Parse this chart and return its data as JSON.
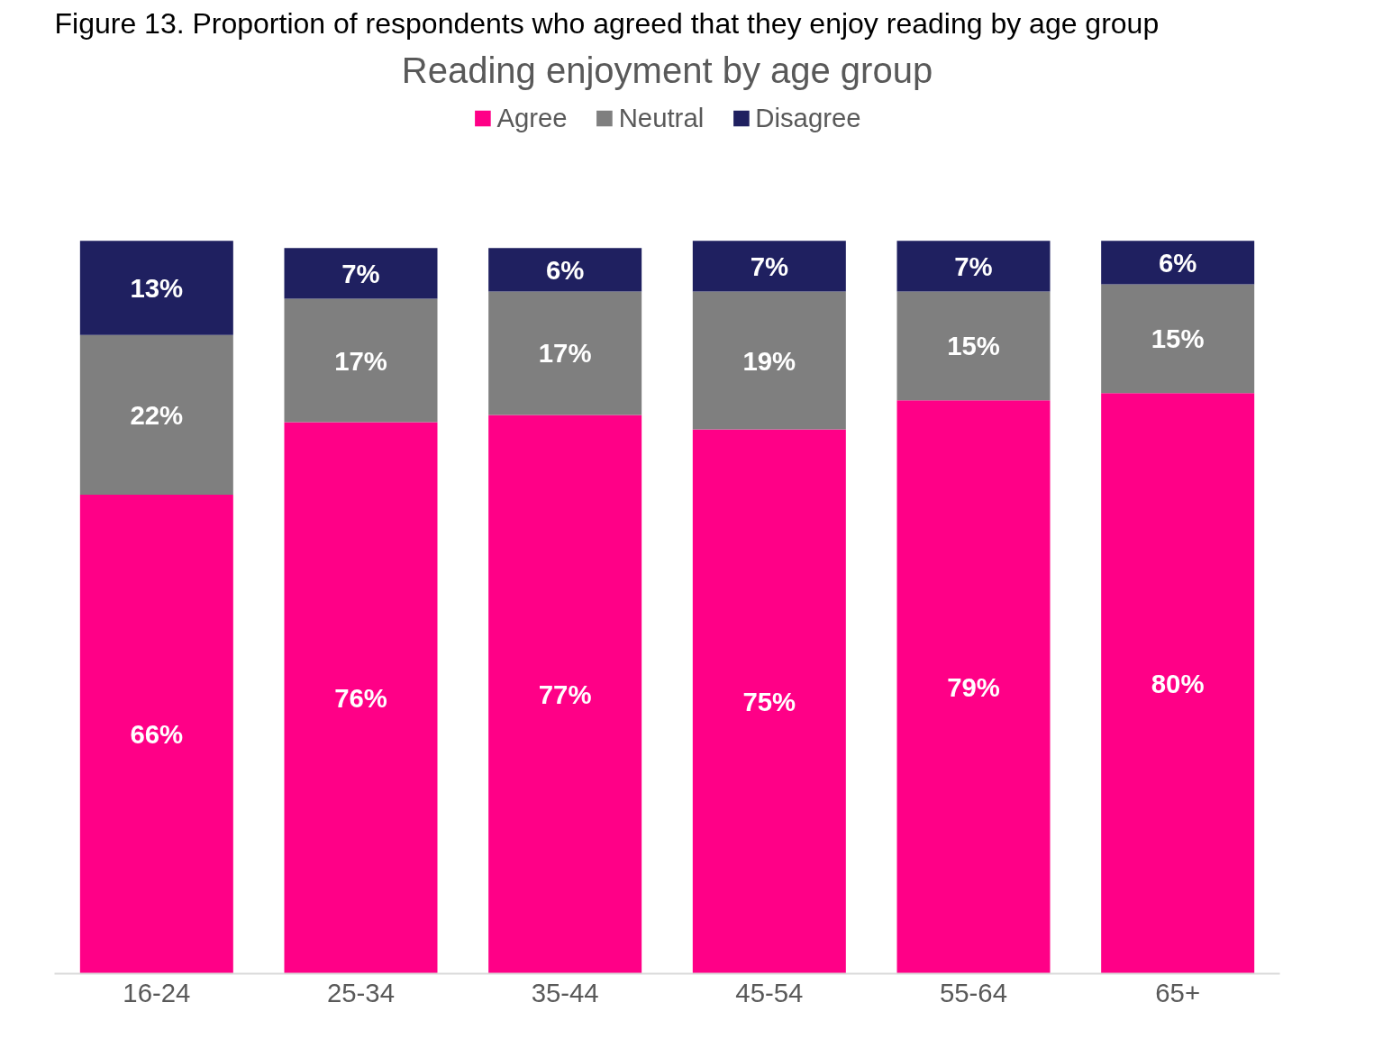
{
  "chart_data": {
    "type": "bar",
    "title": "Figure 13. Proportion of respondents who agreed that they enjoy reading by age group",
    "subtitle": "Reading enjoyment by age group",
    "categories": [
      "16-24",
      "25-34",
      "35-44",
      "45-54",
      "55-64",
      "65+"
    ],
    "stacked": true,
    "legend": "top",
    "grid": false,
    "series": [
      {
        "name": "Agree",
        "color": "#ff0087",
        "values": [
          66,
          76,
          77,
          75,
          79,
          80
        ],
        "value_labels": [
          "66%",
          "76%",
          "77%",
          "75%",
          "79%",
          "80%"
        ]
      },
      {
        "name": "Neutral",
        "color": "#7f7f7f",
        "values": [
          22,
          17,
          17,
          19,
          15,
          15
        ],
        "value_labels": [
          "22%",
          "17%",
          "17%",
          "19%",
          "15%",
          "15%"
        ]
      },
      {
        "name": "Disagree",
        "color": "#1f2060",
        "values": [
          13,
          7,
          6,
          7,
          7,
          6
        ],
        "value_labels": [
          "13%",
          "7%",
          "6%",
          "7%",
          "7%",
          "6%"
        ]
      }
    ]
  }
}
